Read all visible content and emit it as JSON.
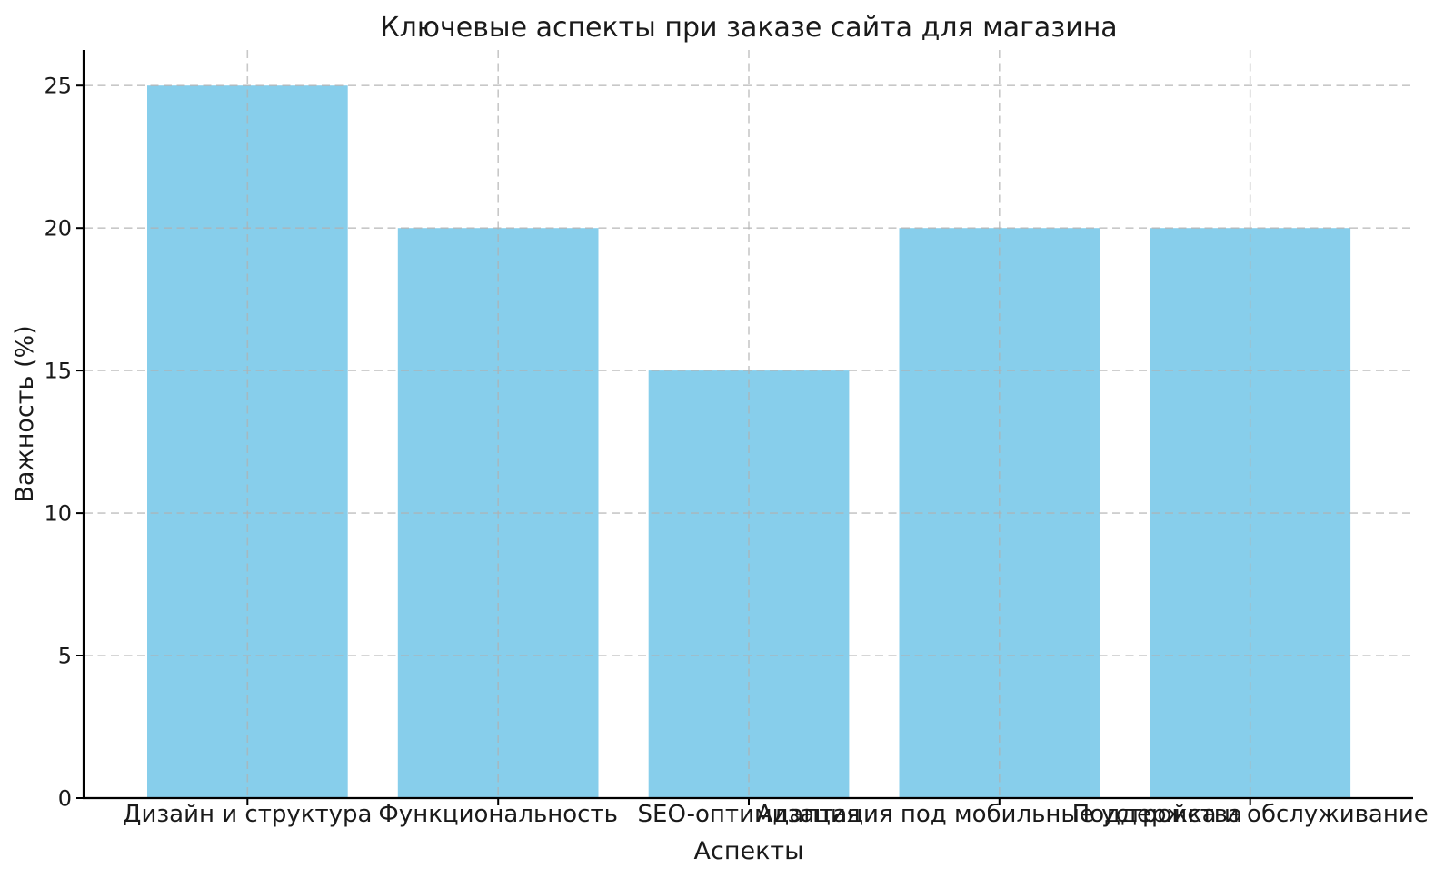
{
  "chart_data": {
    "type": "bar",
    "title": "Ключевые аспекты при заказе сайта для магазина",
    "xlabel": "Аспекты",
    "ylabel": "Важность (%)",
    "categories": [
      "Дизайн и структура",
      "Функциональность",
      "SEO-оптимизация",
      "Адаптация под мобильные устройства",
      "Поддержка и обслуживание"
    ],
    "values": [
      25,
      20,
      15,
      20,
      20
    ],
    "yticks": [
      0,
      5,
      10,
      15,
      20,
      25
    ],
    "ylim": [
      0,
      26.25
    ],
    "bar_color": "#87CEEB",
    "grid": "on",
    "grid_style": "dashed",
    "grid_color": "#b0b0b0",
    "grid_position": "above-bars",
    "spine_color": "#000000",
    "text_color": "#1a1a1a",
    "legend": "none"
  }
}
